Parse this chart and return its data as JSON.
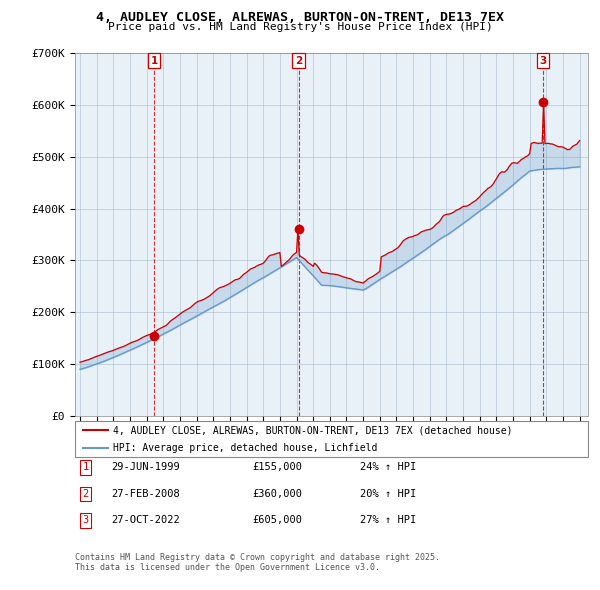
{
  "title": "4, AUDLEY CLOSE, ALREWAS, BURTON-ON-TRENT, DE13 7EX",
  "subtitle": "Price paid vs. HM Land Registry's House Price Index (HPI)",
  "ylim": [
    0,
    700000
  ],
  "yticks": [
    0,
    100000,
    200000,
    300000,
    400000,
    500000,
    600000,
    700000
  ],
  "ytick_labels": [
    "£0",
    "£100K",
    "£200K",
    "£300K",
    "£400K",
    "£500K",
    "£600K",
    "£700K"
  ],
  "x_start_year": 1995,
  "x_end_year": 2025,
  "sale_dates": [
    "1999-06-29",
    "2008-02-27",
    "2022-10-27"
  ],
  "sale_prices": [
    155000,
    360000,
    605000
  ],
  "sale_labels": [
    "1",
    "2",
    "3"
  ],
  "sale_pct": [
    "24%",
    "20%",
    "27%"
  ],
  "sale_date_labels": [
    "29-JUN-1999",
    "27-FEB-2008",
    "27-OCT-2022"
  ],
  "red_color": "#cc0000",
  "blue_color": "#6699cc",
  "fill_color": "#ddeeff",
  "bg_color": "#e8f0f8",
  "legend_label_red": "4, AUDLEY CLOSE, ALREWAS, BURTON-ON-TRENT, DE13 7EX (detached house)",
  "legend_label_blue": "HPI: Average price, detached house, Lichfield",
  "footer1": "Contains HM Land Registry data © Crown copyright and database right 2025.",
  "footer2": "This data is licensed under the Open Government Licence v3.0."
}
